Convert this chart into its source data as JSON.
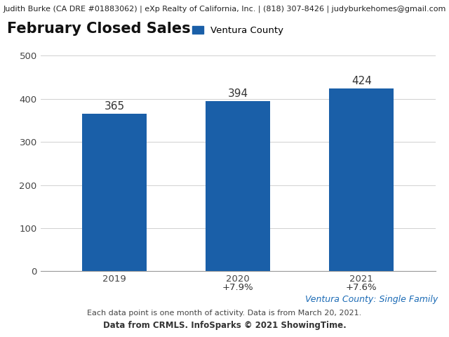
{
  "header_text": "Judith Burke (CA DRE #01883062) | eXp Realty of California, Inc. | (818) 307-8426 | judyburkehomes@gmail.com",
  "title": "February Closed Sales",
  "legend_label": "Ventura County",
  "categories": [
    "2019",
    "2020",
    "2021"
  ],
  "values": [
    365,
    394,
    424
  ],
  "pct_changes": [
    "",
    "+7.9%",
    "+7.6%"
  ],
  "bar_color": "#1a5fa8",
  "legend_color": "#1a5fa8",
  "ylim": [
    0,
    500
  ],
  "yticks": [
    0,
    100,
    200,
    300,
    400,
    500
  ],
  "subtitle_right": "Ventura County: Single Family",
  "subtitle_right_color": "#1a6ab5",
  "footnote1": "Each data point is one month of activity. Data is from March 20, 2021.",
  "footnote2": "Data from CRMLS. InfoSparks © 2021 ShowingTime.",
  "background_color": "#ffffff",
  "header_fontsize": 8.0,
  "title_fontsize": 15,
  "bar_label_fontsize": 11,
  "pct_fontsize": 9.5,
  "footnote_fontsize": 8,
  "footnote2_fontsize": 8.5,
  "legend_fontsize": 9.5,
  "axis_label_fontsize": 9.5,
  "grid_color": "#d0d0d0",
  "header_bg_color": "#eeeeee"
}
